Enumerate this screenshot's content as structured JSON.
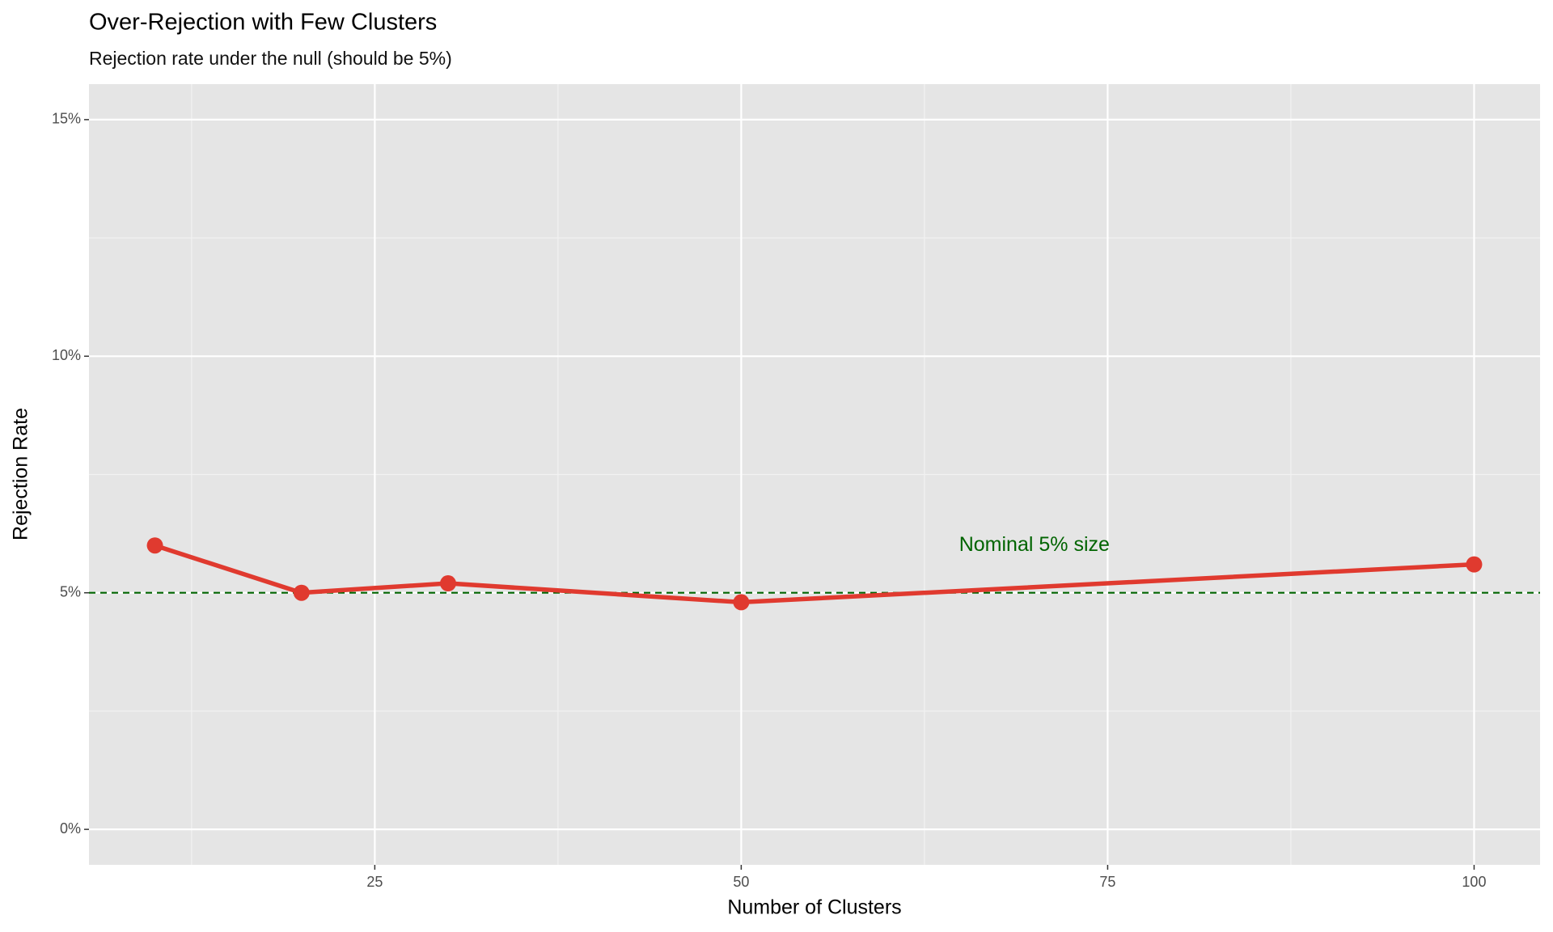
{
  "chart_data": {
    "type": "line",
    "title": "Over-Rejection with Few Clusters",
    "subtitle": "Rejection rate under the null (should be 5%)",
    "x_label": "Number of Clusters",
    "y_label": "Rejection Rate",
    "x": [
      10,
      20,
      30,
      50,
      100
    ],
    "values": [
      6.0,
      5.0,
      5.2,
      4.8,
      5.6
    ],
    "color": "#e03a2f",
    "xlim": [
      5.5,
      104.5
    ],
    "ylim": [
      -0.75,
      15.75
    ],
    "xticks": [
      25,
      50,
      75,
      100
    ],
    "yticks": [
      {
        "value": 0,
        "label": "0%"
      },
      {
        "value": 5,
        "label": "5%"
      },
      {
        "value": 10,
        "label": "10%"
      },
      {
        "value": 15,
        "label": "15%"
      }
    ],
    "grid": true,
    "minor_grid": true,
    "hline": {
      "value": 5,
      "color": "#006400"
    },
    "annotations": [
      {
        "text": "Nominal 5% size",
        "x": 70,
        "y": 6.0,
        "color": "#006400"
      }
    ]
  }
}
